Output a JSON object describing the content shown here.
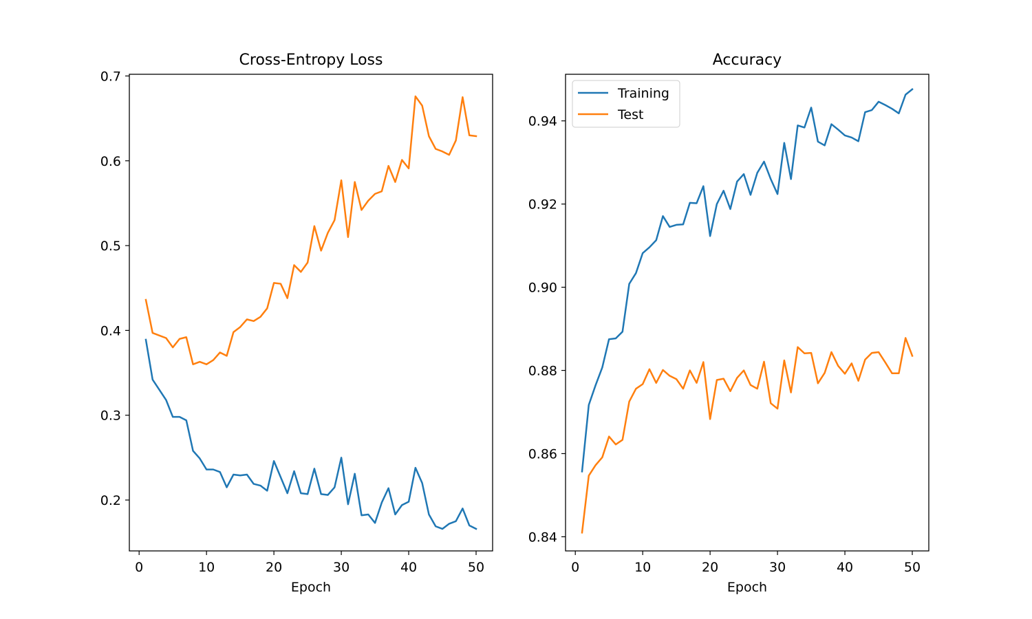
{
  "chart_data": [
    {
      "type": "line",
      "title": "Cross-Entropy Loss",
      "xlabel": "Epoch",
      "ylabel": "",
      "xlim": [
        -1.45,
        52.45
      ],
      "ylim": [
        0.14,
        0.702
      ],
      "xticks": [
        0,
        10,
        20,
        30,
        40,
        50
      ],
      "xtick_labels": [
        "0",
        "10",
        "20",
        "30",
        "40",
        "50"
      ],
      "yticks": [
        0.2,
        0.3,
        0.4,
        0.5,
        0.6,
        0.7
      ],
      "ytick_labels": [
        "0.2",
        "0.3",
        "0.4",
        "0.5",
        "0.6",
        "0.7"
      ],
      "grid": false,
      "legend": null,
      "x": [
        1,
        2,
        3,
        4,
        5,
        6,
        7,
        8,
        9,
        10,
        11,
        12,
        13,
        14,
        15,
        16,
        17,
        18,
        19,
        20,
        21,
        22,
        23,
        24,
        25,
        26,
        27,
        28,
        29,
        30,
        31,
        32,
        33,
        34,
        35,
        36,
        37,
        38,
        39,
        40,
        41,
        42,
        43,
        44,
        45,
        46,
        47,
        48,
        49,
        50
      ],
      "series": [
        {
          "color": "#1f77b4",
          "values": [
            0.389,
            0.342,
            0.33,
            0.318,
            0.298,
            0.298,
            0.294,
            0.258,
            0.249,
            0.236,
            0.236,
            0.233,
            0.215,
            0.23,
            0.229,
            0.23,
            0.219,
            0.217,
            0.211,
            0.246,
            0.227,
            0.208,
            0.234,
            0.208,
            0.207,
            0.237,
            0.207,
            0.206,
            0.215,
            0.25,
            0.195,
            0.231,
            0.182,
            0.183,
            0.173,
            0.197,
            0.214,
            0.183,
            0.194,
            0.198,
            0.238,
            0.22,
            0.183,
            0.169,
            0.166,
            0.172,
            0.175,
            0.19,
            0.17,
            0.166
          ]
        },
        {
          "color": "#ff7f0e",
          "values": [
            0.436,
            0.397,
            0.394,
            0.391,
            0.38,
            0.39,
            0.392,
            0.36,
            0.363,
            0.36,
            0.365,
            0.374,
            0.37,
            0.398,
            0.404,
            0.413,
            0.411,
            0.416,
            0.426,
            0.456,
            0.455,
            0.438,
            0.477,
            0.469,
            0.48,
            0.523,
            0.494,
            0.515,
            0.53,
            0.577,
            0.51,
            0.575,
            0.542,
            0.553,
            0.561,
            0.564,
            0.594,
            0.575,
            0.601,
            0.591,
            0.676,
            0.665,
            0.629,
            0.614,
            0.611,
            0.607,
            0.624,
            0.675,
            0.63,
            0.629
          ]
        }
      ]
    },
    {
      "type": "line",
      "title": "Accuracy",
      "xlabel": "Epoch",
      "ylabel": "",
      "xlim": [
        -1.45,
        52.45
      ],
      "ylim": [
        0.8366,
        0.9512
      ],
      "xticks": [
        0,
        10,
        20,
        30,
        40,
        50
      ],
      "xtick_labels": [
        "0",
        "10",
        "20",
        "30",
        "40",
        "50"
      ],
      "yticks": [
        0.84,
        0.86,
        0.88,
        0.9,
        0.92,
        0.94
      ],
      "ytick_labels": [
        "0.84",
        "0.86",
        "0.88",
        "0.90",
        "0.92",
        "0.94"
      ],
      "grid": false,
      "legend": "top-left",
      "x": [
        1,
        2,
        3,
        4,
        5,
        6,
        7,
        8,
        9,
        10,
        11,
        12,
        13,
        14,
        15,
        16,
        17,
        18,
        19,
        20,
        21,
        22,
        23,
        24,
        25,
        26,
        27,
        28,
        29,
        30,
        31,
        32,
        33,
        34,
        35,
        36,
        37,
        38,
        39,
        40,
        41,
        42,
        43,
        44,
        45,
        46,
        47,
        48,
        49,
        50
      ],
      "series": [
        {
          "name": "Training",
          "color": "#1f77b4",
          "values": [
            0.8557,
            0.8717,
            0.8764,
            0.8807,
            0.8875,
            0.8877,
            0.8893,
            0.9008,
            0.9034,
            0.9082,
            0.9096,
            0.9113,
            0.9171,
            0.9145,
            0.915,
            0.9151,
            0.9203,
            0.9202,
            0.9243,
            0.9123,
            0.92,
            0.9232,
            0.9188,
            0.9254,
            0.9272,
            0.9222,
            0.9275,
            0.9302,
            0.926,
            0.9224,
            0.9347,
            0.926,
            0.9389,
            0.9384,
            0.9432,
            0.935,
            0.9341,
            0.9392,
            0.9379,
            0.9365,
            0.936,
            0.9351,
            0.9421,
            0.9426,
            0.9446,
            0.9438,
            0.9429,
            0.9418,
            0.9463,
            0.9476
          ]
        },
        {
          "name": "Test",
          "color": "#ff7f0e",
          "values": [
            0.841,
            0.8547,
            0.8572,
            0.8591,
            0.8641,
            0.8622,
            0.8633,
            0.8725,
            0.8756,
            0.8767,
            0.8803,
            0.877,
            0.8801,
            0.8787,
            0.8779,
            0.8756,
            0.88,
            0.877,
            0.882,
            0.8683,
            0.8777,
            0.878,
            0.875,
            0.8782,
            0.88,
            0.8765,
            0.8756,
            0.8821,
            0.8721,
            0.8708,
            0.8824,
            0.8747,
            0.8856,
            0.8841,
            0.8842,
            0.8769,
            0.8794,
            0.8844,
            0.8811,
            0.8792,
            0.8817,
            0.8775,
            0.8826,
            0.8842,
            0.8844,
            0.8819,
            0.8793,
            0.8793,
            0.8878,
            0.8835
          ]
        }
      ]
    }
  ]
}
